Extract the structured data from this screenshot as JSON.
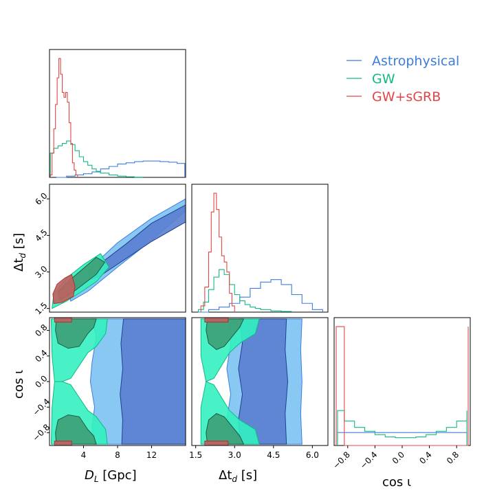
{
  "chart_data": {
    "type": "corner",
    "colors": {
      "astrophysical": "#3b7ddd",
      "gw": "#10b981",
      "gwsgrb": "#e04646",
      "astro_fill_outer": "#7cc2f2",
      "astro_fill_inner": "#5b7ed0",
      "gw_fill_outer": "#34f0c0",
      "gw_fill_inner": "#3e9e76",
      "gwsgrb_fill": "#c06060"
    },
    "legend": {
      "position": "top-right",
      "entries": [
        {
          "name": "Astrophysical",
          "color": "#3b7ddd"
        },
        {
          "name": "GW",
          "color": "#10b981"
        },
        {
          "name": "GW+sGRB",
          "color": "#e04646"
        }
      ]
    },
    "axes": {
      "dl": {
        "label_main": "D",
        "label_sub": "L",
        "label_unit": " [Gpc]",
        "range": [
          0,
          16
        ],
        "ticks": [
          4,
          8,
          12
        ],
        "tick_labels": [
          "4",
          "8",
          "12"
        ]
      },
      "td": {
        "label_main": "Δt",
        "label_sub": "d",
        "label_unit": " [s]",
        "range": [
          1.35,
          6.6
        ],
        "ticks": [
          1.5,
          3.0,
          4.5,
          6.0
        ],
        "tick_labels": [
          "1.5",
          "3.0",
          "4.5",
          "6.0"
        ]
      },
      "cosi": {
        "label": "cos ι",
        "range": [
          -1,
          1
        ],
        "ticks": [
          -0.8,
          -0.4,
          0.0,
          0.4,
          0.8
        ],
        "tick_labels": [
          "−0.8",
          "−0.4",
          "0.0",
          "0.4",
          "0.8"
        ]
      }
    },
    "marginals": {
      "dl": {
        "astrophysical": {
          "x": [
            0.8,
            2,
            3,
            4,
            5,
            6,
            7,
            8,
            9,
            10,
            11,
            12,
            13,
            14,
            15,
            15.9
          ],
          "y": [
            0.0,
            0.01,
            0.02,
            0.03,
            0.045,
            0.07,
            0.09,
            0.11,
            0.12,
            0.13,
            0.135,
            0.135,
            0.13,
            0.125,
            0.115,
            0.11
          ]
        },
        "gw": {
          "x": [
            0.1,
            0.5,
            1,
            1.5,
            2,
            2.5,
            3,
            3.5,
            4,
            4.5,
            5,
            5.5,
            6,
            7,
            8,
            9,
            10,
            11
          ],
          "y": [
            0.2,
            0.24,
            0.26,
            0.28,
            0.3,
            0.27,
            0.22,
            0.17,
            0.13,
            0.1,
            0.07,
            0.05,
            0.035,
            0.02,
            0.01,
            0.005,
            0.002,
            0.0
          ]
        },
        "gwsgrb": {
          "x": [
            0.1,
            0.3,
            0.5,
            0.7,
            0.9,
            1.1,
            1.3,
            1.5,
            1.7,
            1.9,
            2.1,
            2.3,
            2.5,
            2.7,
            2.9,
            3.1,
            3.3
          ],
          "y": [
            0.02,
            0.2,
            0.4,
            0.6,
            0.82,
            0.98,
            0.85,
            0.7,
            0.66,
            0.7,
            0.62,
            0.45,
            0.28,
            0.12,
            0.06,
            0.02,
            0.0
          ]
        }
      },
      "td": {
        "astrophysical": {
          "x": [
            1.6,
            2.0,
            2.4,
            2.8,
            3.2,
            3.6,
            4.0,
            4.4,
            4.8,
            5.2,
            5.6,
            6.0,
            6.4
          ],
          "y": [
            0.0,
            0.02,
            0.04,
            0.07,
            0.12,
            0.19,
            0.24,
            0.26,
            0.22,
            0.14,
            0.07,
            0.02,
            0.005
          ]
        },
        "gw": {
          "x": [
            1.6,
            1.8,
            2.0,
            2.2,
            2.4,
            2.6,
            2.8,
            3.0,
            3.2,
            3.4,
            3.6,
            3.8,
            4.0,
            4.4,
            4.8,
            5.2
          ],
          "y": [
            0.02,
            0.08,
            0.18,
            0.28,
            0.34,
            0.3,
            0.22,
            0.14,
            0.09,
            0.06,
            0.04,
            0.03,
            0.02,
            0.01,
            0.005,
            0.0
          ]
        },
        "gwsgrb": {
          "x": [
            1.7,
            1.85,
            2.0,
            2.1,
            2.2,
            2.3,
            2.4,
            2.5,
            2.6,
            2.7,
            2.8,
            2.9,
            3.0
          ],
          "y": [
            0.05,
            0.2,
            0.48,
            0.8,
            0.95,
            0.82,
            0.6,
            0.45,
            0.4,
            0.32,
            0.15,
            0.05,
            0.0
          ]
        }
      },
      "cosi": {
        "astrophysical": {
          "x": [
            -0.95,
            0.95
          ],
          "y": [
            0.5,
            0.5
          ]
        },
        "gw": {
          "x": [
            -0.95,
            -0.85,
            -0.7,
            -0.55,
            -0.4,
            -0.25,
            -0.1,
            0.05,
            0.2,
            0.35,
            0.5,
            0.65,
            0.8,
            0.95
          ],
          "y": [
            1.35,
            0.95,
            0.7,
            0.55,
            0.42,
            0.33,
            0.3,
            0.3,
            0.33,
            0.42,
            0.55,
            0.7,
            0.95,
            1.35
          ]
        },
        "gwsgrb": {
          "x": [
            -0.97,
            -0.85,
            0.85,
            0.97
          ],
          "y": [
            4.6,
            0.0,
            0.0,
            4.6
          ]
        }
      }
    },
    "contours": {
      "dl_td": {
        "astrophysical": {
          "outer": [
            [
              4.5,
              2.2
            ],
            [
              8,
              3.2
            ],
            [
              12,
              4.3
            ],
            [
              16,
              5.5
            ],
            [
              16,
              6.0
            ],
            [
              12,
              5.2
            ],
            [
              8,
              4.2
            ],
            [
              4,
              2.9
            ],
            [
              2,
              2.3
            ],
            [
              2.5,
              1.8
            ]
          ],
          "inner": [
            [
              6,
              2.85
            ],
            [
              9,
              3.55
            ],
            [
              12,
              4.25
            ],
            [
              16,
              5.05
            ],
            [
              16,
              5.75
            ],
            [
              12,
              5.0
            ],
            [
              9,
              4.15
            ],
            [
              6,
              3.35
            ],
            [
              4.5,
              2.95
            ],
            [
              5,
              2.7
            ]
          ]
        },
        "gw": {
          "outer": [
            [
              0.3,
              1.5
            ],
            [
              2,
              1.8
            ],
            [
              4,
              2.25
            ],
            [
              5.5,
              2.6
            ],
            [
              7,
              3.2
            ],
            [
              6,
              3.75
            ],
            [
              4,
              3.3
            ],
            [
              2,
              2.75
            ],
            [
              0.5,
              2.1
            ]
          ],
          "inner": [
            [
              1.2,
              1.85
            ],
            [
              2.5,
              2.1
            ],
            [
              4,
              2.5
            ],
            [
              5.5,
              2.9
            ],
            [
              6.5,
              3.4
            ],
            [
              5.5,
              3.6
            ],
            [
              4,
              3.15
            ],
            [
              2.5,
              2.7
            ],
            [
              1,
              2.2
            ]
          ]
        },
        "gwsgrb": {
          "outer": [
            [
              0.5,
              1.7
            ],
            [
              1.5,
              1.75
            ],
            [
              2.8,
              2.0
            ],
            [
              3.0,
              2.4
            ],
            [
              2.6,
              2.9
            ],
            [
              1.8,
              2.75
            ],
            [
              0.9,
              2.5
            ],
            [
              0.4,
              2.1
            ]
          ]
        }
      },
      "dl_cosi": {
        "astrophysical": {
          "outer": [
            [
              5.2,
              -0.98
            ],
            [
              16,
              -0.98
            ],
            [
              16,
              0.98
            ],
            [
              5.0,
              0.98
            ],
            [
              5.5,
              0.7
            ],
            [
              5.0,
              0.3
            ],
            [
              4.8,
              0.0
            ],
            [
              5.3,
              -0.4
            ],
            [
              5.0,
              -0.7
            ]
          ],
          "inner": [
            [
              8.5,
              -0.98
            ],
            [
              16,
              -0.98
            ],
            [
              16,
              0.98
            ],
            [
              8.7,
              0.98
            ],
            [
              8.4,
              0.6
            ],
            [
              8.6,
              0.2
            ],
            [
              8.3,
              -0.2
            ],
            [
              8.6,
              -0.6
            ]
          ]
        },
        "gw": {
          "upper_outer": [
            [
              0.2,
              0.98
            ],
            [
              6.8,
              0.98
            ],
            [
              6.6,
              0.75
            ],
            [
              5.5,
              0.55
            ],
            [
              4.5,
              0.45
            ],
            [
              3.5,
              0.25
            ],
            [
              2.5,
              0.05
            ],
            [
              1.5,
              0.0
            ],
            [
              0.6,
              0.0
            ],
            [
              0.3,
              0.4
            ]
          ],
          "upper_inner": [
            [
              0.8,
              0.98
            ],
            [
              5.5,
              0.98
            ],
            [
              5.2,
              0.85
            ],
            [
              4.5,
              0.75
            ],
            [
              3.5,
              0.55
            ],
            [
              2.2,
              0.52
            ],
            [
              1.0,
              0.6
            ],
            [
              0.7,
              0.8
            ]
          ],
          "lower_outer": [
            [
              0.2,
              -0.98
            ],
            [
              6.8,
              -0.98
            ],
            [
              6.6,
              -0.75
            ],
            [
              5.5,
              -0.55
            ],
            [
              4.5,
              -0.45
            ],
            [
              3.5,
              -0.25
            ],
            [
              2.5,
              -0.05
            ],
            [
              1.5,
              0.0
            ],
            [
              0.6,
              0.0
            ],
            [
              0.3,
              -0.4
            ]
          ],
          "lower_inner": [
            [
              0.8,
              -0.98
            ],
            [
              5.5,
              -0.98
            ],
            [
              5.2,
              -0.85
            ],
            [
              4.5,
              -0.75
            ],
            [
              3.5,
              -0.55
            ],
            [
              2.2,
              -0.52
            ],
            [
              1.0,
              -0.6
            ],
            [
              0.7,
              -0.8
            ]
          ]
        },
        "gwsgrb": {
          "upper": [
            [
              0.6,
              0.93
            ],
            [
              2.6,
              0.93
            ],
            [
              2.6,
              1.0
            ],
            [
              0.6,
              1.0
            ]
          ],
          "lower": [
            [
              0.6,
              -0.93
            ],
            [
              2.6,
              -0.93
            ],
            [
              2.6,
              -1.0
            ],
            [
              0.6,
              -1.0
            ]
          ]
        }
      },
      "td_cosi": {
        "astrophysical": {
          "outer": [
            [
              2.75,
              -0.98
            ],
            [
              5.6,
              -0.98
            ],
            [
              5.55,
              -0.5
            ],
            [
              5.6,
              0.0
            ],
            [
              5.55,
              0.5
            ],
            [
              5.6,
              0.98
            ],
            [
              2.75,
              0.98
            ],
            [
              2.85,
              0.6
            ],
            [
              2.7,
              0.2
            ],
            [
              2.85,
              -0.2
            ],
            [
              2.7,
              -0.6
            ]
          ],
          "inner": [
            [
              3.2,
              -0.98
            ],
            [
              5.0,
              -0.98
            ],
            [
              4.95,
              -0.5
            ],
            [
              5.05,
              0.0
            ],
            [
              4.95,
              0.5
            ],
            [
              5.0,
              0.98
            ],
            [
              3.2,
              0.98
            ],
            [
              3.3,
              0.6
            ],
            [
              3.15,
              0.2
            ],
            [
              3.3,
              -0.2
            ],
            [
              3.15,
              -0.6
            ]
          ]
        },
        "gw": {
          "upper_outer": [
            [
              1.7,
              0.98
            ],
            [
              3.95,
              0.98
            ],
            [
              3.8,
              0.75
            ],
            [
              3.2,
              0.6
            ],
            [
              2.8,
              0.45
            ],
            [
              2.5,
              0.25
            ],
            [
              2.2,
              0.05
            ],
            [
              1.9,
              0.0
            ],
            [
              1.7,
              0.4
            ]
          ],
          "upper_inner": [
            [
              1.95,
              0.98
            ],
            [
              3.35,
              0.98
            ],
            [
              3.2,
              0.85
            ],
            [
              2.9,
              0.7
            ],
            [
              2.6,
              0.55
            ],
            [
              2.3,
              0.5
            ],
            [
              2.0,
              0.6
            ],
            [
              1.9,
              0.8
            ]
          ],
          "lower_outer": [
            [
              1.7,
              -0.98
            ],
            [
              3.95,
              -0.98
            ],
            [
              3.8,
              -0.75
            ],
            [
              3.2,
              -0.6
            ],
            [
              2.8,
              -0.45
            ],
            [
              2.5,
              -0.25
            ],
            [
              2.2,
              -0.05
            ],
            [
              1.9,
              0.0
            ],
            [
              1.7,
              -0.4
            ]
          ],
          "lower_inner": [
            [
              1.95,
              -0.98
            ],
            [
              3.35,
              -0.98
            ],
            [
              3.2,
              -0.85
            ],
            [
              2.9,
              -0.7
            ],
            [
              2.6,
              -0.55
            ],
            [
              2.3,
              -0.5
            ],
            [
              2.0,
              -0.6
            ],
            [
              1.9,
              -0.8
            ]
          ]
        },
        "gwsgrb": {
          "upper": [
            [
              1.85,
              0.93
            ],
            [
              2.75,
              0.93
            ],
            [
              2.75,
              1.0
            ],
            [
              1.85,
              1.0
            ]
          ],
          "lower": [
            [
              1.85,
              -0.93
            ],
            [
              2.75,
              -0.93
            ],
            [
              2.75,
              -1.0
            ],
            [
              1.85,
              -1.0
            ]
          ]
        }
      }
    }
  }
}
